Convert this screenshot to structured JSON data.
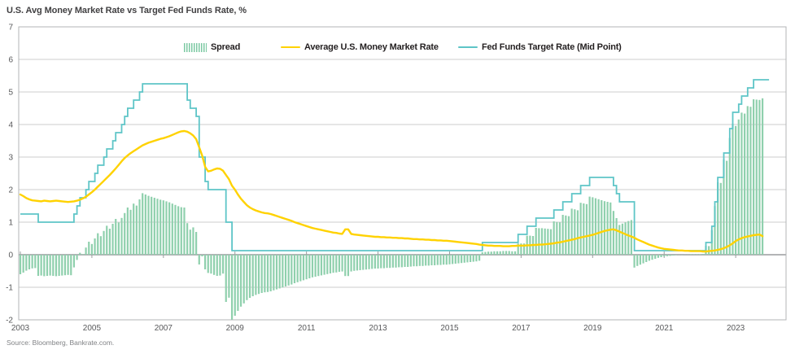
{
  "header": {
    "title": "U.S. Avg Money Market Rate vs Target Fed Funds Rate, %"
  },
  "footer": {
    "source": "Source: Bloomberg, Bankrate.com."
  },
  "legend": {
    "items": [
      {
        "label": "Spread",
        "type": "bars",
        "color": "#8FD0AD"
      },
      {
        "label": "Average U.S. Money Market Rate",
        "type": "line",
        "color": "#FFD200"
      },
      {
        "label": "Fed Funds Target Rate (Mid Point)",
        "type": "line",
        "color": "#5EC5C7"
      }
    ]
  },
  "chart_data": {
    "type": "bar",
    "subtype": "combo bar + line + step-line, monthly data",
    "title": "U.S. Avg Money Market Rate vs Target Fed Funds Rate, %",
    "xlabel": "",
    "ylabel": "%",
    "x_unit": "monthly",
    "x_range": [
      "2003-01",
      "2023-10"
    ],
    "x_tick_labels": [
      "2003",
      "2005",
      "2007",
      "2009",
      "2011",
      "2013",
      "2015",
      "2017",
      "2019",
      "2021",
      "2023"
    ],
    "ylim": [
      -2,
      7
    ],
    "y_ticks": [
      7,
      6,
      5,
      4,
      3,
      2,
      1,
      0,
      -1,
      -2
    ],
    "grid": "horizontal",
    "legend_position": "top-inside",
    "series": [
      {
        "name": "Fed Funds Target Rate (Mid Point)",
        "type": "step-line",
        "color": "#5EC5C7",
        "values": [
          1.25,
          1.25,
          1.25,
          1.25,
          1.25,
          1.25,
          1.0,
          1.0,
          1.0,
          1.0,
          1.0,
          1.0,
          1.0,
          1.0,
          1.0,
          1.0,
          1.0,
          1.0,
          1.25,
          1.5,
          1.75,
          1.75,
          2.0,
          2.25,
          2.25,
          2.5,
          2.75,
          2.75,
          3.0,
          3.25,
          3.25,
          3.5,
          3.75,
          3.75,
          4.0,
          4.25,
          4.5,
          4.5,
          4.75,
          4.75,
          5.0,
          5.25,
          5.25,
          5.25,
          5.25,
          5.25,
          5.25,
          5.25,
          5.25,
          5.25,
          5.25,
          5.25,
          5.25,
          5.25,
          5.25,
          5.25,
          4.75,
          4.5,
          4.5,
          4.25,
          3.0,
          3.0,
          2.25,
          2.0,
          2.0,
          2.0,
          2.0,
          2.0,
          2.0,
          1.0,
          1.0,
          0.125,
          0.125,
          0.125,
          0.125,
          0.125,
          0.125,
          0.125,
          0.125,
          0.125,
          0.125,
          0.125,
          0.125,
          0.125,
          0.125,
          0.125,
          0.125,
          0.125,
          0.125,
          0.125,
          0.125,
          0.125,
          0.125,
          0.125,
          0.125,
          0.125,
          0.125,
          0.125,
          0.125,
          0.125,
          0.125,
          0.125,
          0.125,
          0.125,
          0.125,
          0.125,
          0.125,
          0.125,
          0.125,
          0.125,
          0.125,
          0.125,
          0.125,
          0.125,
          0.125,
          0.125,
          0.125,
          0.125,
          0.125,
          0.125,
          0.125,
          0.125,
          0.125,
          0.125,
          0.125,
          0.125,
          0.125,
          0.125,
          0.125,
          0.125,
          0.125,
          0.125,
          0.125,
          0.125,
          0.125,
          0.125,
          0.125,
          0.125,
          0.125,
          0.125,
          0.125,
          0.125,
          0.125,
          0.125,
          0.125,
          0.125,
          0.125,
          0.125,
          0.125,
          0.125,
          0.125,
          0.125,
          0.125,
          0.125,
          0.125,
          0.375,
          0.375,
          0.375,
          0.375,
          0.375,
          0.375,
          0.375,
          0.375,
          0.375,
          0.375,
          0.375,
          0.375,
          0.625,
          0.625,
          0.625,
          0.875,
          0.875,
          0.875,
          1.125,
          1.125,
          1.125,
          1.125,
          1.125,
          1.125,
          1.375,
          1.375,
          1.375,
          1.625,
          1.625,
          1.625,
          1.875,
          1.875,
          1.875,
          2.125,
          2.125,
          2.125,
          2.375,
          2.375,
          2.375,
          2.375,
          2.375,
          2.375,
          2.375,
          2.375,
          2.125,
          1.875,
          1.625,
          1.625,
          1.625,
          1.625,
          1.625,
          0.125,
          0.125,
          0.125,
          0.125,
          0.125,
          0.125,
          0.125,
          0.125,
          0.125,
          0.125,
          0.125,
          0.125,
          0.125,
          0.125,
          0.125,
          0.125,
          0.125,
          0.125,
          0.125,
          0.125,
          0.125,
          0.125,
          0.125,
          0.125,
          0.375,
          0.375,
          0.875,
          1.625,
          2.375,
          2.375,
          3.125,
          3.125,
          3.875,
          4.375,
          4.375,
          4.625,
          4.875,
          4.875,
          5.125,
          5.125,
          5.375,
          5.375,
          5.375,
          5.375
        ]
      },
      {
        "name": "Average U.S. Money Market Rate",
        "type": "line",
        "color": "#FFD200",
        "values": [
          1.85,
          1.8,
          1.74,
          1.7,
          1.67,
          1.66,
          1.65,
          1.64,
          1.66,
          1.65,
          1.64,
          1.65,
          1.66,
          1.65,
          1.64,
          1.63,
          1.62,
          1.63,
          1.64,
          1.66,
          1.69,
          1.73,
          1.78,
          1.85,
          1.92,
          2.0,
          2.09,
          2.18,
          2.27,
          2.36,
          2.45,
          2.55,
          2.65,
          2.76,
          2.87,
          2.97,
          3.05,
          3.12,
          3.18,
          3.24,
          3.3,
          3.36,
          3.4,
          3.44,
          3.47,
          3.5,
          3.53,
          3.56,
          3.58,
          3.61,
          3.64,
          3.68,
          3.72,
          3.76,
          3.79,
          3.8,
          3.78,
          3.73,
          3.66,
          3.55,
          3.3,
          3.05,
          2.7,
          2.56,
          2.58,
          2.62,
          2.65,
          2.64,
          2.58,
          2.45,
          2.32,
          2.12,
          2.0,
          1.85,
          1.72,
          1.62,
          1.52,
          1.45,
          1.4,
          1.36,
          1.33,
          1.3,
          1.28,
          1.27,
          1.25,
          1.22,
          1.19,
          1.16,
          1.13,
          1.1,
          1.07,
          1.04,
          1.0,
          0.97,
          0.94,
          0.91,
          0.88,
          0.85,
          0.82,
          0.8,
          0.78,
          0.76,
          0.74,
          0.72,
          0.7,
          0.68,
          0.67,
          0.65,
          0.64,
          0.78,
          0.78,
          0.64,
          0.62,
          0.61,
          0.6,
          0.59,
          0.58,
          0.57,
          0.56,
          0.55,
          0.55,
          0.54,
          0.54,
          0.53,
          0.53,
          0.52,
          0.52,
          0.51,
          0.51,
          0.5,
          0.5,
          0.49,
          0.48,
          0.48,
          0.47,
          0.47,
          0.46,
          0.46,
          0.45,
          0.45,
          0.44,
          0.44,
          0.43,
          0.43,
          0.42,
          0.41,
          0.4,
          0.39,
          0.38,
          0.37,
          0.36,
          0.35,
          0.34,
          0.33,
          0.31,
          0.3,
          0.29,
          0.28,
          0.28,
          0.27,
          0.27,
          0.27,
          0.26,
          0.26,
          0.26,
          0.27,
          0.27,
          0.28,
          0.28,
          0.28,
          0.29,
          0.29,
          0.3,
          0.3,
          0.31,
          0.31,
          0.32,
          0.33,
          0.34,
          0.35,
          0.37,
          0.38,
          0.4,
          0.42,
          0.44,
          0.46,
          0.48,
          0.51,
          0.53,
          0.55,
          0.57,
          0.59,
          0.61,
          0.64,
          0.67,
          0.7,
          0.73,
          0.75,
          0.77,
          0.78,
          0.75,
          0.71,
          0.67,
          0.63,
          0.59,
          0.56,
          0.52,
          0.47,
          0.43,
          0.39,
          0.35,
          0.31,
          0.28,
          0.25,
          0.22,
          0.2,
          0.18,
          0.17,
          0.16,
          0.15,
          0.14,
          0.13,
          0.13,
          0.12,
          0.12,
          0.11,
          0.11,
          0.11,
          0.11,
          0.1,
          0.1,
          0.11,
          0.12,
          0.13,
          0.15,
          0.17,
          0.2,
          0.24,
          0.29,
          0.35,
          0.42,
          0.47,
          0.51,
          0.54,
          0.56,
          0.58,
          0.6,
          0.61,
          0.62,
          0.57
        ]
      },
      {
        "name": "Spread",
        "type": "bar",
        "color": "#8FD0AD",
        "definition": "fed_funds_target_mid_minus_money_market_rate"
      }
    ]
  }
}
